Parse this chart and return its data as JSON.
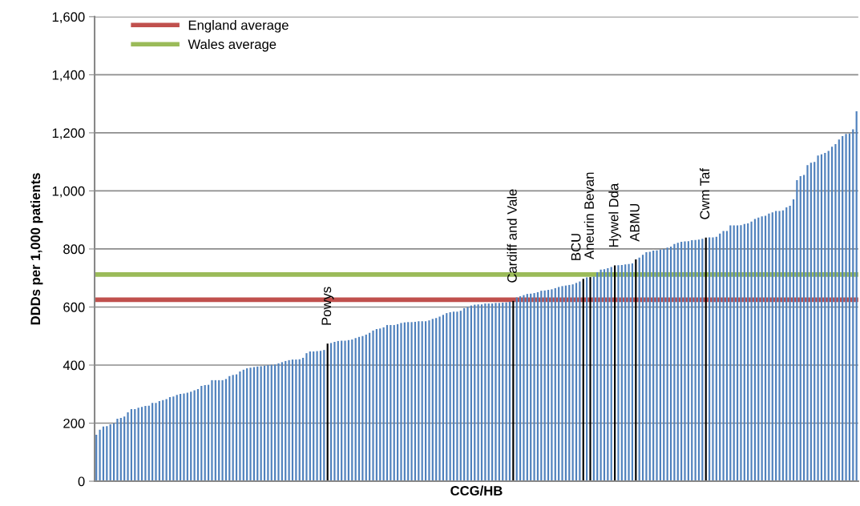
{
  "chart_data": {
    "type": "bar",
    "xlabel": "CCG/HB",
    "ylabel": "DDDs per 1,000 patients",
    "categories": [
      null,
      null,
      null,
      null,
      null,
      null,
      null,
      null,
      null,
      null,
      null,
      null,
      null,
      null,
      null,
      null,
      null,
      null,
      null,
      null,
      null,
      null,
      null,
      null,
      null,
      null,
      null,
      null,
      null,
      null,
      null,
      null,
      null,
      null,
      null,
      null,
      null,
      null,
      null,
      null,
      null,
      null,
      null,
      null,
      null,
      null,
      null,
      null,
      null,
      null,
      null,
      null,
      null,
      null,
      null,
      null,
      null,
      null,
      null,
      null,
      null,
      null,
      null,
      null,
      null,
      null,
      null,
      null,
      null,
      null,
      null,
      null,
      null,
      null,
      null,
      null,
      null,
      null,
      null,
      null,
      null,
      null,
      null,
      null,
      null,
      null,
      null,
      null,
      null,
      null,
      null,
      null,
      null,
      null,
      null,
      null,
      null,
      null,
      null,
      null,
      null,
      null,
      null,
      null,
      null,
      null,
      null,
      null,
      null,
      null,
      null,
      null,
      null,
      null,
      null,
      null,
      null,
      null,
      null,
      null,
      null,
      null,
      null,
      null,
      null,
      null,
      null,
      null,
      null,
      null,
      null,
      null,
      null,
      null,
      null,
      null,
      null,
      null,
      null,
      null,
      null,
      null,
      null,
      null,
      null,
      null,
      null,
      null,
      null,
      null,
      null,
      null,
      null,
      null,
      null,
      null,
      null,
      null,
      null,
      null,
      null,
      null,
      null,
      null,
      null,
      null,
      null,
      null,
      null,
      null,
      null,
      null,
      null,
      null,
      null,
      null,
      null,
      null,
      null,
      null,
      null,
      null,
      null,
      null,
      null,
      null,
      null,
      null,
      null,
      null,
      null,
      null,
      null,
      null,
      null,
      null,
      null,
      null,
      null,
      null,
      null,
      null,
      null,
      null,
      null,
      null,
      null,
      null,
      null,
      null,
      null,
      null,
      null,
      null,
      null,
      null,
      null,
      null
    ],
    "values": [
      160,
      177,
      188,
      190,
      196,
      199,
      215,
      218,
      223,
      237,
      248,
      248,
      253,
      256,
      259,
      260,
      270,
      270,
      276,
      279,
      283,
      290,
      292,
      297,
      301,
      302,
      305,
      308,
      313,
      317,
      328,
      331,
      332,
      348,
      348,
      348,
      348,
      352,
      362,
      366,
      368,
      378,
      384,
      389,
      391,
      393,
      395,
      396,
      398,
      400,
      401,
      402,
      406,
      410,
      414,
      417,
      419,
      419,
      420,
      425,
      441,
      447,
      447,
      448,
      449,
      452,
      474,
      476,
      480,
      483,
      484,
      484,
      486,
      488,
      493,
      497,
      500,
      505,
      511,
      519,
      524,
      526,
      530,
      538,
      538,
      538,
      541,
      545,
      547,
      548,
      548,
      549,
      551,
      551,
      551,
      554,
      559,
      562,
      567,
      573,
      579,
      582,
      584,
      584,
      587,
      596,
      600,
      605,
      608,
      609,
      609,
      612,
      612,
      612,
      614,
      614,
      615,
      616,
      618,
      621,
      633,
      637,
      641,
      645,
      646,
      648,
      651,
      656,
      657,
      659,
      661,
      665,
      669,
      672,
      674,
      676,
      678,
      683,
      688,
      697,
      702,
      703,
      705,
      720,
      729,
      730,
      734,
      738,
      743,
      744,
      745,
      747,
      748,
      750,
      764,
      770,
      780,
      789,
      790,
      794,
      795,
      798,
      800,
      805,
      808,
      817,
      821,
      825,
      826,
      827,
      830,
      831,
      832,
      835,
      839,
      840,
      840,
      842,
      853,
      862,
      862,
      881,
      881,
      881,
      882,
      886,
      888,
      894,
      903,
      908,
      912,
      914,
      922,
      926,
      931,
      931,
      933,
      943,
      949,
      971,
      1037,
      1051,
      1055,
      1089,
      1097,
      1100,
      1122,
      1126,
      1131,
      1138,
      1152,
      1161,
      1177,
      1189,
      1196,
      1198,
      1212,
      1274
    ],
    "colors": [
      "#4f81bd",
      "#4f81bd",
      "#4f81bd",
      "#4f81bd",
      "#4f81bd",
      "#4f81bd",
      "#4f81bd",
      "#4f81bd",
      "#4f81bd",
      "#4f81bd",
      "#4f81bd",
      "#4f81bd",
      "#4f81bd",
      "#4f81bd",
      "#4f81bd",
      "#4f81bd",
      "#4f81bd",
      "#4f81bd",
      "#4f81bd",
      "#4f81bd",
      "#4f81bd",
      "#4f81bd",
      "#4f81bd",
      "#4f81bd",
      "#4f81bd",
      "#4f81bd",
      "#4f81bd",
      "#4f81bd",
      "#4f81bd",
      "#4f81bd",
      "#4f81bd",
      "#4f81bd",
      "#4f81bd",
      "#4f81bd",
      "#4f81bd",
      "#4f81bd",
      "#4f81bd",
      "#4f81bd",
      "#4f81bd",
      "#4f81bd",
      "#4f81bd",
      "#4f81bd",
      "#4f81bd",
      "#4f81bd",
      "#4f81bd",
      "#4f81bd",
      "#4f81bd",
      "#4f81bd",
      "#4f81bd",
      "#4f81bd",
      "#4f81bd",
      "#4f81bd",
      "#4f81bd",
      "#4f81bd",
      "#4f81bd",
      "#4f81bd",
      "#4f81bd",
      "#4f81bd",
      "#4f81bd",
      "#4f81bd",
      "#4f81bd",
      "#4f81bd",
      "#4f81bd",
      "#4f81bd",
      "#4f81bd",
      "#4f81bd",
      "#000000",
      "#4f81bd",
      "#4f81bd",
      "#4f81bd",
      "#4f81bd",
      "#4f81bd",
      "#4f81bd",
      "#4f81bd",
      "#4f81bd",
      "#4f81bd",
      "#4f81bd",
      "#4f81bd",
      "#4f81bd",
      "#4f81bd",
      "#4f81bd",
      "#4f81bd",
      "#4f81bd",
      "#4f81bd",
      "#4f81bd",
      "#4f81bd",
      "#4f81bd",
      "#4f81bd",
      "#4f81bd",
      "#4f81bd",
      "#4f81bd",
      "#4f81bd",
      "#4f81bd",
      "#4f81bd",
      "#4f81bd",
      "#4f81bd",
      "#4f81bd",
      "#4f81bd",
      "#4f81bd",
      "#4f81bd",
      "#4f81bd",
      "#4f81bd",
      "#4f81bd",
      "#4f81bd",
      "#4f81bd",
      "#4f81bd",
      "#4f81bd",
      "#4f81bd",
      "#4f81bd",
      "#4f81bd",
      "#4f81bd",
      "#4f81bd",
      "#4f81bd",
      "#4f81bd",
      "#4f81bd",
      "#4f81bd",
      "#4f81bd",
      "#4f81bd",
      "#4f81bd",
      "#000000",
      "#4f81bd",
      "#4f81bd",
      "#4f81bd",
      "#4f81bd",
      "#4f81bd",
      "#4f81bd",
      "#4f81bd",
      "#4f81bd",
      "#4f81bd",
      "#4f81bd",
      "#4f81bd",
      "#4f81bd",
      "#4f81bd",
      "#4f81bd",
      "#4f81bd",
      "#4f81bd",
      "#4f81bd",
      "#4f81bd",
      "#4f81bd",
      "#000000",
      "#4f81bd",
      "#000000",
      "#4f81bd",
      "#4f81bd",
      "#4f81bd",
      "#4f81bd",
      "#4f81bd",
      "#4f81bd",
      "#000000",
      "#4f81bd",
      "#4f81bd",
      "#4f81bd",
      "#4f81bd",
      "#4f81bd",
      "#000000",
      "#4f81bd",
      "#4f81bd",
      "#4f81bd",
      "#4f81bd",
      "#4f81bd",
      "#4f81bd",
      "#4f81bd",
      "#4f81bd",
      "#4f81bd",
      "#4f81bd",
      "#4f81bd",
      "#4f81bd",
      "#4f81bd",
      "#4f81bd",
      "#4f81bd",
      "#4f81bd",
      "#4f81bd",
      "#4f81bd",
      "#4f81bd",
      "#000000",
      "#4f81bd",
      "#4f81bd",
      "#4f81bd",
      "#4f81bd",
      "#4f81bd",
      "#4f81bd",
      "#4f81bd",
      "#4f81bd",
      "#4f81bd",
      "#4f81bd",
      "#4f81bd",
      "#4f81bd",
      "#4f81bd",
      "#4f81bd",
      "#4f81bd",
      "#4f81bd",
      "#4f81bd",
      "#4f81bd",
      "#4f81bd",
      "#4f81bd",
      "#4f81bd",
      "#4f81bd",
      "#4f81bd",
      "#4f81bd",
      "#4f81bd",
      "#4f81bd",
      "#4f81bd",
      "#4f81bd",
      "#4f81bd",
      "#4f81bd",
      "#4f81bd",
      "#4f81bd",
      "#4f81bd",
      "#4f81bd",
      "#4f81bd",
      "#4f81bd",
      "#4f81bd",
      "#4f81bd",
      "#4f81bd",
      "#4f81bd",
      "#4f81bd",
      "#4f81bd",
      "#4f81bd"
    ],
    "annotations": [
      {
        "text": "Powys",
        "y": 474
      },
      {
        "text": "Cardiff and Vale",
        "y": 621
      },
      {
        "text": "BCU",
        "y": 697
      },
      {
        "text": "Aneurin Bevan",
        "y": 703
      },
      {
        "text": "Hywel Dda",
        "y": 743
      },
      {
        "text": "ABMU",
        "y": 764
      },
      {
        "text": "Cwm Taf",
        "y": 839
      }
    ],
    "ylim": [
      0,
      1600
    ],
    "yticks": [
      0,
      200,
      400,
      600,
      800,
      {
        "value": 1000,
        "label": "1,000"
      },
      {
        "value": 1200,
        "label": "1,200"
      },
      {
        "value": 1400,
        "label": "1,400"
      },
      {
        "value": 1600,
        "label": "1,600"
      }
    ],
    "ref_lines": [
      {
        "axis": "y",
        "value": 625,
        "label": "England average",
        "color": "#c0504d"
      },
      {
        "axis": "y",
        "value": 712,
        "label": "Wales average",
        "color": "#9bbb59"
      }
    ],
    "grid": "y",
    "legend": "top left",
    "tick_labels": "y"
  }
}
